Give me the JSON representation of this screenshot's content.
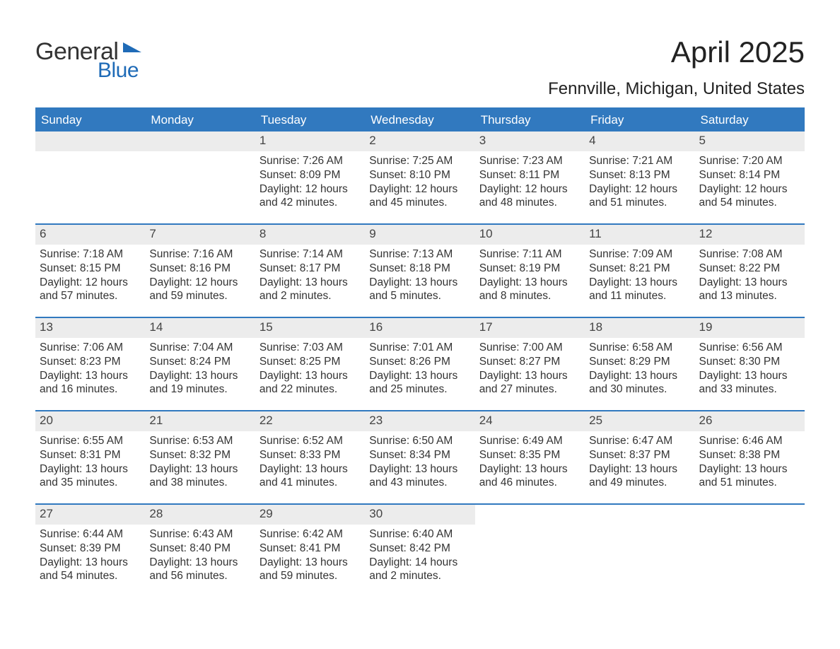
{
  "logo": {
    "word1": "General",
    "word2": "Blue",
    "flag_color": "#1f6bb7"
  },
  "title": "April 2025",
  "location": "Fennville, Michigan, United States",
  "weekdays": [
    "Sunday",
    "Monday",
    "Tuesday",
    "Wednesday",
    "Thursday",
    "Friday",
    "Saturday"
  ],
  "colors": {
    "header_bg": "#3179bf",
    "header_text": "#ffffff",
    "row_divider": "#3179bf",
    "daynum_bg": "#ececec",
    "body_text": "#333333",
    "page_bg": "#ffffff"
  },
  "type": "calendar-table",
  "weeks": [
    [
      {
        "num": "",
        "lines": []
      },
      {
        "num": "",
        "lines": []
      },
      {
        "num": "1",
        "lines": [
          "Sunrise: 7:26 AM",
          "Sunset: 8:09 PM",
          "Daylight: 12 hours",
          "and 42 minutes."
        ]
      },
      {
        "num": "2",
        "lines": [
          "Sunrise: 7:25 AM",
          "Sunset: 8:10 PM",
          "Daylight: 12 hours",
          "and 45 minutes."
        ]
      },
      {
        "num": "3",
        "lines": [
          "Sunrise: 7:23 AM",
          "Sunset: 8:11 PM",
          "Daylight: 12 hours",
          "and 48 minutes."
        ]
      },
      {
        "num": "4",
        "lines": [
          "Sunrise: 7:21 AM",
          "Sunset: 8:13 PM",
          "Daylight: 12 hours",
          "and 51 minutes."
        ]
      },
      {
        "num": "5",
        "lines": [
          "Sunrise: 7:20 AM",
          "Sunset: 8:14 PM",
          "Daylight: 12 hours",
          "and 54 minutes."
        ]
      }
    ],
    [
      {
        "num": "6",
        "lines": [
          "Sunrise: 7:18 AM",
          "Sunset: 8:15 PM",
          "Daylight: 12 hours",
          "and 57 minutes."
        ]
      },
      {
        "num": "7",
        "lines": [
          "Sunrise: 7:16 AM",
          "Sunset: 8:16 PM",
          "Daylight: 12 hours",
          "and 59 minutes."
        ]
      },
      {
        "num": "8",
        "lines": [
          "Sunrise: 7:14 AM",
          "Sunset: 8:17 PM",
          "Daylight: 13 hours",
          "and 2 minutes."
        ]
      },
      {
        "num": "9",
        "lines": [
          "Sunrise: 7:13 AM",
          "Sunset: 8:18 PM",
          "Daylight: 13 hours",
          "and 5 minutes."
        ]
      },
      {
        "num": "10",
        "lines": [
          "Sunrise: 7:11 AM",
          "Sunset: 8:19 PM",
          "Daylight: 13 hours",
          "and 8 minutes."
        ]
      },
      {
        "num": "11",
        "lines": [
          "Sunrise: 7:09 AM",
          "Sunset: 8:21 PM",
          "Daylight: 13 hours",
          "and 11 minutes."
        ]
      },
      {
        "num": "12",
        "lines": [
          "Sunrise: 7:08 AM",
          "Sunset: 8:22 PM",
          "Daylight: 13 hours",
          "and 13 minutes."
        ]
      }
    ],
    [
      {
        "num": "13",
        "lines": [
          "Sunrise: 7:06 AM",
          "Sunset: 8:23 PM",
          "Daylight: 13 hours",
          "and 16 minutes."
        ]
      },
      {
        "num": "14",
        "lines": [
          "Sunrise: 7:04 AM",
          "Sunset: 8:24 PM",
          "Daylight: 13 hours",
          "and 19 minutes."
        ]
      },
      {
        "num": "15",
        "lines": [
          "Sunrise: 7:03 AM",
          "Sunset: 8:25 PM",
          "Daylight: 13 hours",
          "and 22 minutes."
        ]
      },
      {
        "num": "16",
        "lines": [
          "Sunrise: 7:01 AM",
          "Sunset: 8:26 PM",
          "Daylight: 13 hours",
          "and 25 minutes."
        ]
      },
      {
        "num": "17",
        "lines": [
          "Sunrise: 7:00 AM",
          "Sunset: 8:27 PM",
          "Daylight: 13 hours",
          "and 27 minutes."
        ]
      },
      {
        "num": "18",
        "lines": [
          "Sunrise: 6:58 AM",
          "Sunset: 8:29 PM",
          "Daylight: 13 hours",
          "and 30 minutes."
        ]
      },
      {
        "num": "19",
        "lines": [
          "Sunrise: 6:56 AM",
          "Sunset: 8:30 PM",
          "Daylight: 13 hours",
          "and 33 minutes."
        ]
      }
    ],
    [
      {
        "num": "20",
        "lines": [
          "Sunrise: 6:55 AM",
          "Sunset: 8:31 PM",
          "Daylight: 13 hours",
          "and 35 minutes."
        ]
      },
      {
        "num": "21",
        "lines": [
          "Sunrise: 6:53 AM",
          "Sunset: 8:32 PM",
          "Daylight: 13 hours",
          "and 38 minutes."
        ]
      },
      {
        "num": "22",
        "lines": [
          "Sunrise: 6:52 AM",
          "Sunset: 8:33 PM",
          "Daylight: 13 hours",
          "and 41 minutes."
        ]
      },
      {
        "num": "23",
        "lines": [
          "Sunrise: 6:50 AM",
          "Sunset: 8:34 PM",
          "Daylight: 13 hours",
          "and 43 minutes."
        ]
      },
      {
        "num": "24",
        "lines": [
          "Sunrise: 6:49 AM",
          "Sunset: 8:35 PM",
          "Daylight: 13 hours",
          "and 46 minutes."
        ]
      },
      {
        "num": "25",
        "lines": [
          "Sunrise: 6:47 AM",
          "Sunset: 8:37 PM",
          "Daylight: 13 hours",
          "and 49 minutes."
        ]
      },
      {
        "num": "26",
        "lines": [
          "Sunrise: 6:46 AM",
          "Sunset: 8:38 PM",
          "Daylight: 13 hours",
          "and 51 minutes."
        ]
      }
    ],
    [
      {
        "num": "27",
        "lines": [
          "Sunrise: 6:44 AM",
          "Sunset: 8:39 PM",
          "Daylight: 13 hours",
          "and 54 minutes."
        ]
      },
      {
        "num": "28",
        "lines": [
          "Sunrise: 6:43 AM",
          "Sunset: 8:40 PM",
          "Daylight: 13 hours",
          "and 56 minutes."
        ]
      },
      {
        "num": "29",
        "lines": [
          "Sunrise: 6:42 AM",
          "Sunset: 8:41 PM",
          "Daylight: 13 hours",
          "and 59 minutes."
        ]
      },
      {
        "num": "30",
        "lines": [
          "Sunrise: 6:40 AM",
          "Sunset: 8:42 PM",
          "Daylight: 14 hours",
          "and 2 minutes."
        ]
      },
      {
        "num": "",
        "lines": []
      },
      {
        "num": "",
        "lines": []
      },
      {
        "num": "",
        "lines": []
      }
    ]
  ]
}
